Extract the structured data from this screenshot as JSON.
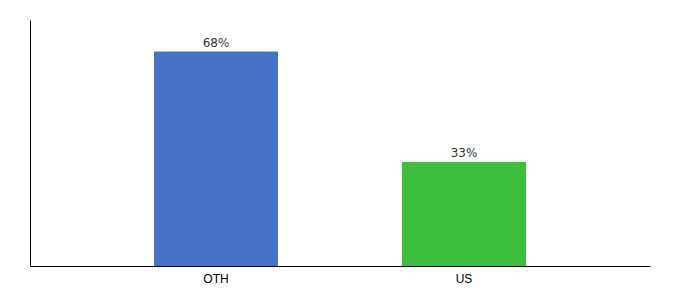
{
  "chart_data": {
    "type": "bar",
    "categories": [
      "OTH",
      "US"
    ],
    "values": [
      68,
      33
    ],
    "value_labels": [
      "68%",
      "33%"
    ],
    "colors": [
      "#4472c4",
      "#3dbf3d"
    ],
    "ylim": [
      0,
      78
    ],
    "data_labels": true,
    "tick_labels": "x"
  }
}
